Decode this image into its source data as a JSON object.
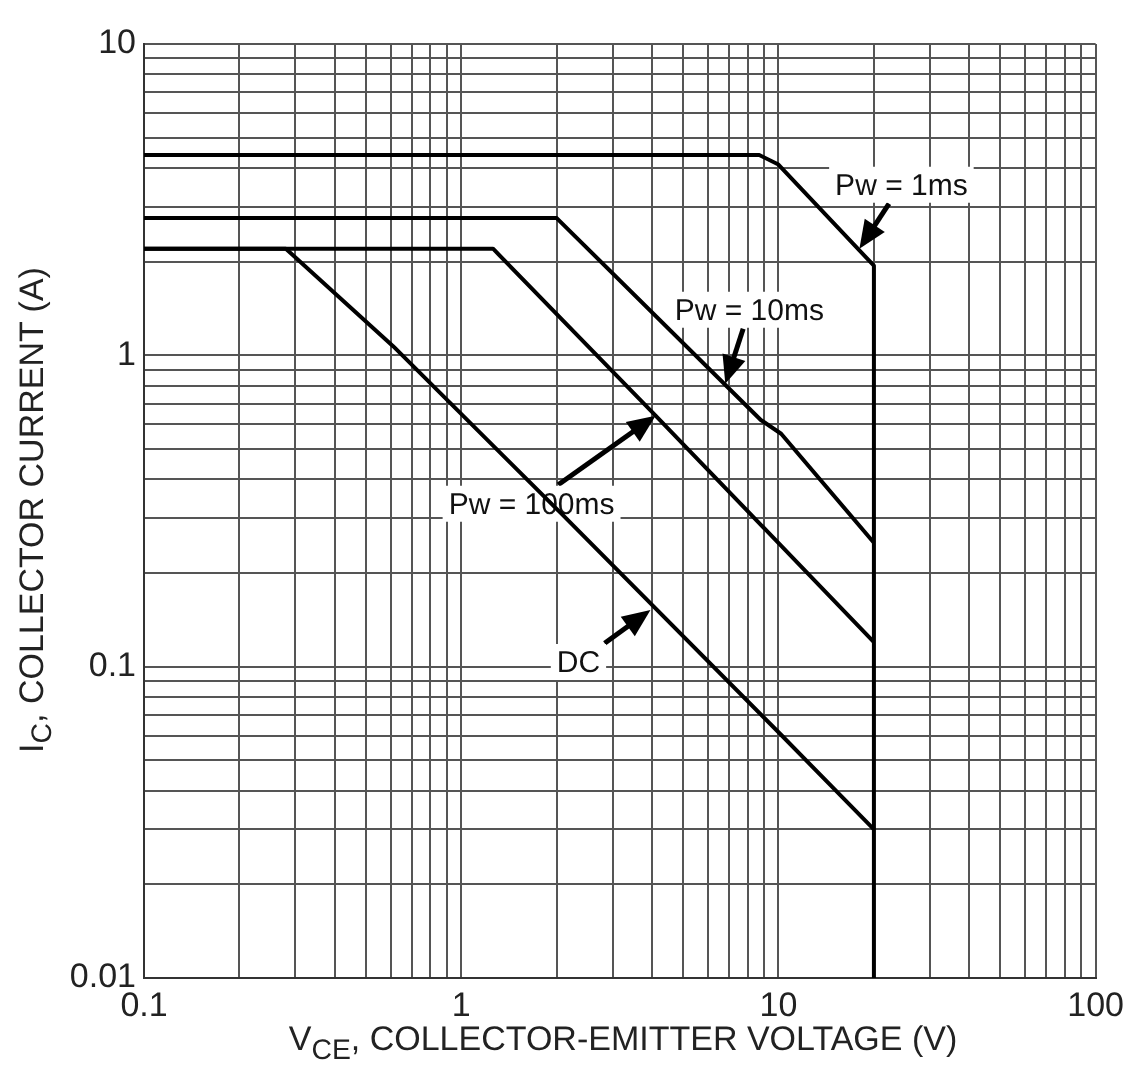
{
  "chart_data": {
    "type": "line",
    "xlabel": "V$_{CE}$, COLLECTOR-EMITTER VOLTAGE (V)",
    "ylabel": "I$_{C}$, COLLECTOR CURRENT (A)",
    "log": "xy",
    "grid": true,
    "legend": false,
    "marker": "none",
    "line_style": "solid",
    "xlim": [
      0.1,
      100
    ],
    "ylim": [
      0.01,
      10
    ],
    "xticks": [
      0.1,
      {
        "value": 0.2,
        "label": null
      },
      {
        "value": 0.3,
        "label": null
      },
      {
        "value": 0.4,
        "label": null
      },
      {
        "value": 0.5,
        "label": null
      },
      {
        "value": 0.6,
        "label": null
      },
      {
        "value": 0.7,
        "label": null
      },
      {
        "value": 0.8,
        "label": null
      },
      {
        "value": 0.9,
        "label": null
      },
      1,
      {
        "value": 2,
        "label": null
      },
      {
        "value": 3,
        "label": null
      },
      {
        "value": 4,
        "label": null
      },
      {
        "value": 5,
        "label": null
      },
      {
        "value": 6,
        "label": null
      },
      {
        "value": 7,
        "label": null
      },
      {
        "value": 8,
        "label": null
      },
      {
        "value": 9,
        "label": null
      },
      10,
      {
        "value": 20,
        "label": null
      },
      {
        "value": 30,
        "label": null
      },
      {
        "value": 40,
        "label": null
      },
      {
        "value": 50,
        "label": null
      },
      {
        "value": 60,
        "label": null
      },
      {
        "value": 70,
        "label": null
      },
      {
        "value": 80,
        "label": null
      },
      {
        "value": 90,
        "label": null
      },
      100
    ],
    "yticks": [
      0.01,
      {
        "value": 0.02,
        "label": null
      },
      {
        "value": 0.03,
        "label": null
      },
      {
        "value": 0.04,
        "label": null
      },
      {
        "value": 0.05,
        "label": null
      },
      {
        "value": 0.06,
        "label": null
      },
      {
        "value": 0.07,
        "label": null
      },
      {
        "value": 0.08,
        "label": null
      },
      {
        "value": 0.09,
        "label": null
      },
      0.1,
      {
        "value": 0.2,
        "label": null
      },
      {
        "value": 0.3,
        "label": null
      },
      {
        "value": 0.4,
        "label": null
      },
      {
        "value": 0.5,
        "label": null
      },
      {
        "value": 0.6,
        "label": null
      },
      {
        "value": 0.7,
        "label": null
      },
      {
        "value": 0.8,
        "label": null
      },
      {
        "value": 0.9,
        "label": null
      },
      1,
      {
        "value": 2,
        "label": null
      },
      {
        "value": 3,
        "label": null
      },
      {
        "value": 4,
        "label": null
      },
      {
        "value": 5,
        "label": null
      },
      {
        "value": 6,
        "label": null
      },
      {
        "value": 7,
        "label": null
      },
      {
        "value": 8,
        "label": null
      },
      {
        "value": 9,
        "label": null
      },
      10
    ],
    "series": [
      {
        "color": "#000000",
        "x": [
          0.1,
          8.7,
          10,
          20,
          20
        ],
        "values": [
          4.4,
          4.4,
          4.1,
          1.94,
          0.01
        ]
      },
      {
        "color": "#000000",
        "x": [
          0.1,
          2,
          8.8,
          10.2,
          20
        ],
        "values": [
          2.76,
          2.76,
          0.62,
          0.56,
          0.25
        ]
      },
      {
        "color": "#000000",
        "x": [
          0.1,
          1.26,
          4.1,
          20
        ],
        "values": [
          2.2,
          2.2,
          0.64,
          0.12
        ]
      },
      {
        "color": "#000000",
        "x": [
          0.1,
          0.28,
          0.61,
          2.07,
          10.1,
          20
        ],
        "values": [
          2.2,
          2.2,
          1.07,
          0.31,
          0.061,
          0.03
        ]
      }
    ],
    "annotations": [
      {
        "text": "Pw = 1ms",
        "x": 18,
        "y": 2.2
      },
      {
        "text": "Pw = 10ms",
        "x": 6.8,
        "y": 0.81
      },
      {
        "text": "Pw = 100ms",
        "x": 4.1,
        "y": 0.64
      },
      {
        "text": "DC",
        "x": 3.95,
        "y": 0.152
      }
    ]
  }
}
